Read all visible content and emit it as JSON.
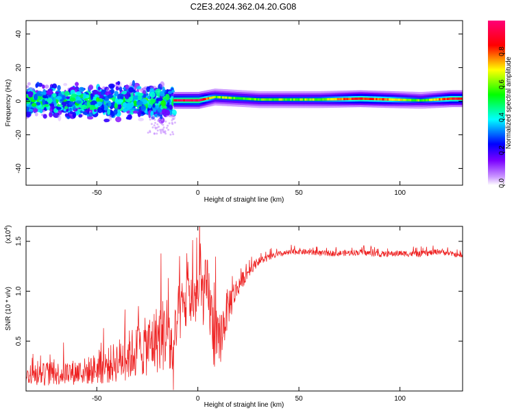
{
  "title": "C2E3.2024.362.04.20.G08",
  "chart_data": [
    {
      "type": "heatmap",
      "xlabel": "Height of straight line (km)",
      "ylabel": "Frequency (Hz)",
      "xlim": [
        -85,
        131
      ],
      "ylim": [
        -50,
        48
      ],
      "xticks": [
        -50,
        0,
        50,
        100
      ],
      "yticks": [
        40,
        20,
        0,
        -20,
        -40
      ],
      "grid": false,
      "colorbar": {
        "label": "Normalized spectral amplitude",
        "range": [
          0.0,
          1.0
        ],
        "ticks": [
          0.0,
          0.2,
          0.4,
          0.6,
          0.8
        ],
        "colors": [
          "#ffffff",
          "#7b00ff",
          "#0000ff",
          "#00ffff",
          "#00ff00",
          "#ffff00",
          "#ff0000",
          "#ff00aa"
        ]
      },
      "ridge": [
        {
          "x": -12,
          "y": 0.5,
          "amp": 0.9
        },
        {
          "x": 0,
          "y": 0.5,
          "amp": 0.95
        },
        {
          "x": 8,
          "y": 2.5,
          "amp": 0.6
        },
        {
          "x": 30,
          "y": 1.0,
          "amp": 0.55
        },
        {
          "x": 60,
          "y": 1.0,
          "amp": 0.6
        },
        {
          "x": 80,
          "y": 1.5,
          "amp": 0.85
        },
        {
          "x": 95,
          "y": 1.0,
          "amp": 0.75
        },
        {
          "x": 110,
          "y": 0.5,
          "amp": 0.55
        },
        {
          "x": 125,
          "y": 1.5,
          "amp": 0.85
        }
      ],
      "noisy_region": {
        "x_from": -85,
        "x_to": -12,
        "freq_spread": 15,
        "amp": 0.35
      }
    },
    {
      "type": "line",
      "xlabel": "Height of straight line (km)",
      "ylabel": "SNR (10 * v/v)",
      "y_multiplier": "(x10",
      "y_multiplier_exp": "4",
      "y_multiplier_close": ")",
      "xlim": [
        -85,
        131
      ],
      "ylim": [
        0.0,
        1.65
      ],
      "xticks": [
        -50,
        0,
        50,
        100
      ],
      "yticks": [
        0.5,
        1.0,
        1.5
      ],
      "ytick_labels": [
        "0.5",
        "1.0",
        "1.5"
      ],
      "series": [
        {
          "color": "#ee2222",
          "x": [
            -85,
            -75,
            -65,
            -55,
            -45,
            -35,
            -25,
            -15,
            -12,
            -10,
            -5,
            0,
            5,
            8,
            10,
            15,
            20,
            25,
            30,
            40,
            50,
            60,
            70,
            80,
            90,
            100,
            110,
            120,
            131
          ],
          "y": [
            0.15,
            0.17,
            0.18,
            0.2,
            0.25,
            0.35,
            0.45,
            0.6,
            0.3,
            0.75,
            0.9,
            0.95,
            1.0,
            0.55,
            0.45,
            0.85,
            1.05,
            1.2,
            1.3,
            1.37,
            1.4,
            1.38,
            1.38,
            1.39,
            1.37,
            1.38,
            1.37,
            1.4,
            1.35
          ],
          "noise": [
            0.08,
            0.12,
            0.12,
            0.14,
            0.18,
            0.25,
            0.3,
            0.4,
            0.35,
            0.3,
            0.3,
            0.3,
            0.35,
            0.35,
            0.3,
            0.2,
            0.1,
            0.06,
            0.04,
            0.03,
            0.03,
            0.03,
            0.03,
            0.03,
            0.03,
            0.03,
            0.03,
            0.03,
            0.02
          ]
        }
      ]
    }
  ]
}
